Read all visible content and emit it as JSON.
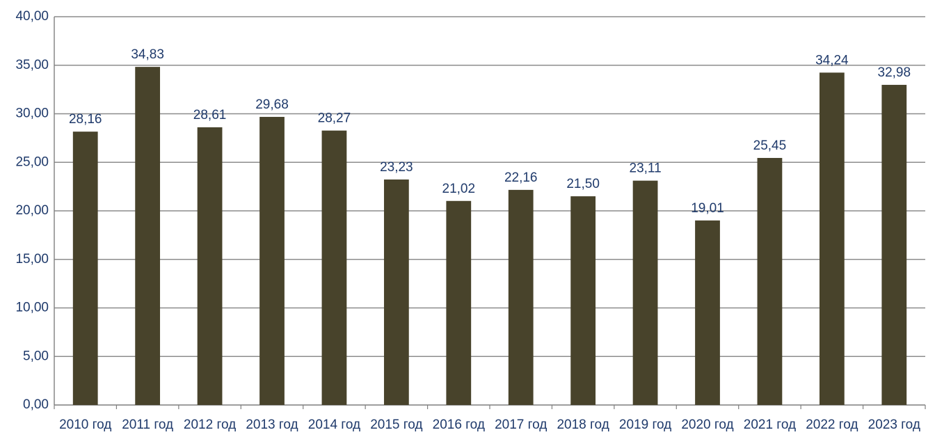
{
  "chart_data": {
    "type": "bar",
    "categories": [
      "2010 год",
      "2011 год",
      "2012 год",
      "2013 год",
      "2014 год",
      "2015 год",
      "2016 год",
      "2017 год",
      "2018 год",
      "2019 год",
      "2020 год",
      "2021 год",
      "2022 год",
      "2023 год"
    ],
    "values": [
      28.16,
      34.83,
      28.61,
      29.68,
      28.27,
      23.23,
      21.02,
      22.16,
      21.5,
      23.11,
      19.01,
      25.45,
      34.24,
      32.98
    ],
    "data_labels": [
      "28,16",
      "34,83",
      "28,61",
      "29,68",
      "28,27",
      "23,23",
      "21,02",
      "22,16",
      "21,50",
      "23,11",
      "19,01",
      "25,45",
      "34,24",
      "32,98"
    ],
    "ylim": [
      0,
      40
    ],
    "y_ticks": [
      0,
      5,
      10,
      15,
      20,
      25,
      30,
      35,
      40
    ],
    "y_tick_labels": [
      "0,00",
      "5,00",
      "10,00",
      "15,00",
      "20,00",
      "25,00",
      "30,00",
      "35,00",
      "40,00"
    ],
    "grid": true,
    "legend": "none",
    "colors": {
      "bar": "#48432b",
      "label_text": "#1f3a6b",
      "grid": "#8c8c8c",
      "axis": "#7f7f7f"
    }
  }
}
